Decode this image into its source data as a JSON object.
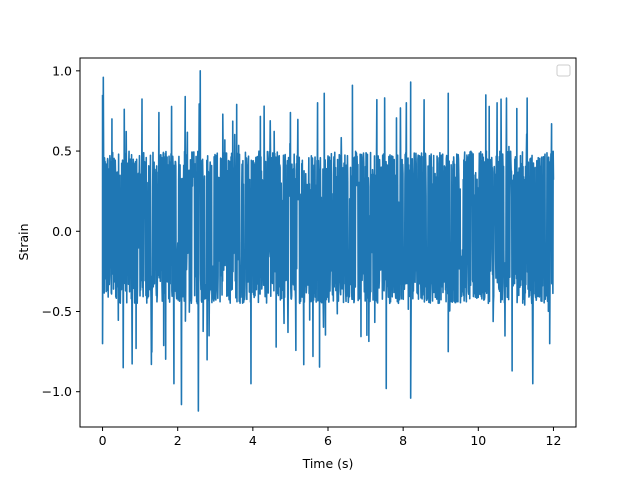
{
  "chart_data": {
    "type": "line",
    "title": "",
    "xlabel": "Time (s)",
    "ylabel": "Strain",
    "xlim": [
      -0.6,
      12.6
    ],
    "ylim": [
      -1.22,
      1.08
    ],
    "x_ticks": [
      0,
      2,
      4,
      6,
      8,
      10,
      12
    ],
    "x_tick_labels": [
      "0",
      "2",
      "4",
      "6",
      "8",
      "10",
      "12"
    ],
    "y_ticks": [
      1.0,
      0.5,
      0.0,
      -0.5,
      -1.0
    ],
    "y_tick_labels": [
      "1.0",
      "0.5",
      "0.0",
      "−0.5",
      "−1.0"
    ],
    "grid": false,
    "legend": {
      "placement": "top-right",
      "entries": []
    },
    "series": [
      {
        "color": "#1f77b4",
        "x_range": [
          0,
          12
        ],
        "band_upper": 0.5,
        "band_lower": -0.45,
        "max": 1.0,
        "min": -1.12,
        "peaks": [
          {
            "x": 0.0,
            "y": 0.85
          },
          {
            "x": 0.02,
            "y": 0.96
          },
          {
            "x": 0.25,
            "y": 0.7
          },
          {
            "x": 1.05,
            "y": 0.67
          },
          {
            "x": 1.5,
            "y": 0.74
          },
          {
            "x": 2.2,
            "y": 0.84
          },
          {
            "x": 2.6,
            "y": 1.0
          },
          {
            "x": 3.2,
            "y": 0.73
          },
          {
            "x": 4.3,
            "y": 0.78
          },
          {
            "x": 5.0,
            "y": 0.74
          },
          {
            "x": 5.9,
            "y": 0.86
          },
          {
            "x": 6.65,
            "y": 0.91
          },
          {
            "x": 7.3,
            "y": 0.82
          },
          {
            "x": 8.2,
            "y": 0.93
          },
          {
            "x": 9.2,
            "y": 0.86
          },
          {
            "x": 10.2,
            "y": 0.85
          },
          {
            "x": 10.75,
            "y": 0.83
          },
          {
            "x": 11.3,
            "y": 0.83
          },
          {
            "x": 11.95,
            "y": 0.67
          }
        ],
        "troughs": [
          {
            "x": 0.0,
            "y": -0.7
          },
          {
            "x": 0.55,
            "y": -0.85
          },
          {
            "x": 1.3,
            "y": -0.83
          },
          {
            "x": 1.9,
            "y": -0.95
          },
          {
            "x": 2.1,
            "y": -1.08
          },
          {
            "x": 2.55,
            "y": -1.12
          },
          {
            "x": 3.95,
            "y": -0.95
          },
          {
            "x": 5.6,
            "y": -0.78
          },
          {
            "x": 7.55,
            "y": -0.98
          },
          {
            "x": 8.2,
            "y": -1.04
          },
          {
            "x": 9.2,
            "y": -0.75
          },
          {
            "x": 10.9,
            "y": -0.87
          },
          {
            "x": 11.45,
            "y": -0.95
          },
          {
            "x": 11.9,
            "y": -0.7
          }
        ]
      }
    ]
  }
}
